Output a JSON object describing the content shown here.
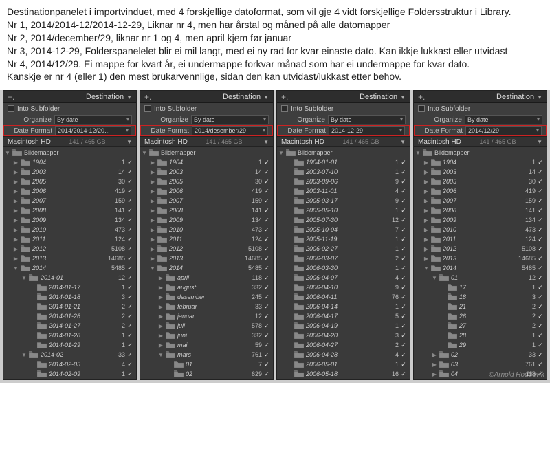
{
  "description_lines": [
    "Destinationpanelet i importvinduet, med 4 forskjellige datoformat, som vil gje 4 vidt forskjellige Foldersstruktur i Library.",
    "Nr 1, 2014/2014-12/2014-12-29, Liknar nr 4, men har årstal og måned på alle datomapper",
    "Nr 2, 2014/december/29, liknar nr 1 og 4, men april kjem før januar",
    "Nr 3, 2014-12-29, Folderspanelelet blir ei mil langt, med ei ny rad for kvar einaste dato. Kan ikkje lukkast eller utvidast",
    "Nr 4, 2014/12/29. Ei mappe for kvart år, ei undermappe forkvar månad som har ei undermappe for kvar dato.",
    "Kanskje er nr 4 (eller 1) den mest brukarvennlige, sidan den kan utvidast/lukkast etter behov."
  ],
  "common": {
    "header_plus": "+.",
    "header_title": "Destination",
    "into_subfolder": "Into Subfolder",
    "organize_label": "Organize",
    "organize_value": "By date",
    "dateformat_label": "Date Format",
    "hd_name": "Macintosh HD",
    "hd_size": "141 / 465 GB",
    "root_folder": "Bildemapper"
  },
  "watermark": "©Arnold Hoddevik",
  "panels": [
    {
      "date_format": "2014/2014-12/20...",
      "tree": [
        {
          "d": 1,
          "e": "▶",
          "n": "1904",
          "c": "1"
        },
        {
          "d": 1,
          "e": "▶",
          "n": "2003",
          "c": "14"
        },
        {
          "d": 1,
          "e": "▶",
          "n": "2005",
          "c": "30"
        },
        {
          "d": 1,
          "e": "▶",
          "n": "2006",
          "c": "419"
        },
        {
          "d": 1,
          "e": "▶",
          "n": "2007",
          "c": "159"
        },
        {
          "d": 1,
          "e": "▶",
          "n": "2008",
          "c": "141"
        },
        {
          "d": 1,
          "e": "▶",
          "n": "2009",
          "c": "134"
        },
        {
          "d": 1,
          "e": "▶",
          "n": "2010",
          "c": "473"
        },
        {
          "d": 1,
          "e": "▶",
          "n": "2011",
          "c": "124"
        },
        {
          "d": 1,
          "e": "▶",
          "n": "2012",
          "c": "5108"
        },
        {
          "d": 1,
          "e": "▶",
          "n": "2013",
          "c": "14685"
        },
        {
          "d": 1,
          "e": "▼",
          "n": "2014",
          "c": "5485"
        },
        {
          "d": 2,
          "e": "▼",
          "n": "2014-01",
          "c": "12"
        },
        {
          "d": 3,
          "e": "",
          "n": "2014-01-17",
          "c": "1"
        },
        {
          "d": 3,
          "e": "",
          "n": "2014-01-18",
          "c": "3"
        },
        {
          "d": 3,
          "e": "",
          "n": "2014-01-21",
          "c": "2"
        },
        {
          "d": 3,
          "e": "",
          "n": "2014-01-26",
          "c": "2"
        },
        {
          "d": 3,
          "e": "",
          "n": "2014-01-27",
          "c": "2"
        },
        {
          "d": 3,
          "e": "",
          "n": "2014-01-28",
          "c": "1"
        },
        {
          "d": 3,
          "e": "",
          "n": "2014-01-29",
          "c": "1"
        },
        {
          "d": 2,
          "e": "▼",
          "n": "2014-02",
          "c": "33"
        },
        {
          "d": 3,
          "e": "",
          "n": "2014-02-05",
          "c": "4"
        },
        {
          "d": 3,
          "e": "",
          "n": "2014-02-09",
          "c": "1"
        }
      ]
    },
    {
      "date_format": "2014/desember/29",
      "tree": [
        {
          "d": 1,
          "e": "▶",
          "n": "1904",
          "c": "1"
        },
        {
          "d": 1,
          "e": "▶",
          "n": "2003",
          "c": "14"
        },
        {
          "d": 1,
          "e": "▶",
          "n": "2005",
          "c": "30"
        },
        {
          "d": 1,
          "e": "▶",
          "n": "2006",
          "c": "419"
        },
        {
          "d": 1,
          "e": "▶",
          "n": "2007",
          "c": "159"
        },
        {
          "d": 1,
          "e": "▶",
          "n": "2008",
          "c": "141"
        },
        {
          "d": 1,
          "e": "▶",
          "n": "2009",
          "c": "134"
        },
        {
          "d": 1,
          "e": "▶",
          "n": "2010",
          "c": "473"
        },
        {
          "d": 1,
          "e": "▶",
          "n": "2011",
          "c": "124"
        },
        {
          "d": 1,
          "e": "▶",
          "n": "2012",
          "c": "5108"
        },
        {
          "d": 1,
          "e": "▶",
          "n": "2013",
          "c": "14685"
        },
        {
          "d": 1,
          "e": "▼",
          "n": "2014",
          "c": "5485"
        },
        {
          "d": 2,
          "e": "▶",
          "n": "april",
          "c": "118"
        },
        {
          "d": 2,
          "e": "▶",
          "n": "august",
          "c": "332"
        },
        {
          "d": 2,
          "e": "▶",
          "n": "desember",
          "c": "245"
        },
        {
          "d": 2,
          "e": "▶",
          "n": "februar",
          "c": "33"
        },
        {
          "d": 2,
          "e": "▶",
          "n": "januar",
          "c": "12"
        },
        {
          "d": 2,
          "e": "▶",
          "n": "juli",
          "c": "578"
        },
        {
          "d": 2,
          "e": "▶",
          "n": "juni",
          "c": "332"
        },
        {
          "d": 2,
          "e": "▶",
          "n": "mai",
          "c": "59"
        },
        {
          "d": 2,
          "e": "▼",
          "n": "mars",
          "c": "761"
        },
        {
          "d": 3,
          "e": "",
          "n": "01",
          "c": "7"
        },
        {
          "d": 3,
          "e": "",
          "n": "02",
          "c": "629"
        }
      ]
    },
    {
      "date_format": "2014-12-29",
      "tree": [
        {
          "d": 1,
          "e": "",
          "n": "1904-01-01",
          "c": "1"
        },
        {
          "d": 1,
          "e": "",
          "n": "2003-07-10",
          "c": "1"
        },
        {
          "d": 1,
          "e": "",
          "n": "2003-09-06",
          "c": "9"
        },
        {
          "d": 1,
          "e": "",
          "n": "2003-11-01",
          "c": "4"
        },
        {
          "d": 1,
          "e": "",
          "n": "2005-03-17",
          "c": "9"
        },
        {
          "d": 1,
          "e": "",
          "n": "2005-05-10",
          "c": "1"
        },
        {
          "d": 1,
          "e": "",
          "n": "2005-07-30",
          "c": "12"
        },
        {
          "d": 1,
          "e": "",
          "n": "2005-10-04",
          "c": "7"
        },
        {
          "d": 1,
          "e": "",
          "n": "2005-11-19",
          "c": "1"
        },
        {
          "d": 1,
          "e": "",
          "n": "2006-02-27",
          "c": "1"
        },
        {
          "d": 1,
          "e": "",
          "n": "2006-03-07",
          "c": "2"
        },
        {
          "d": 1,
          "e": "",
          "n": "2006-03-30",
          "c": "1"
        },
        {
          "d": 1,
          "e": "",
          "n": "2006-04-07",
          "c": "4"
        },
        {
          "d": 1,
          "e": "",
          "n": "2006-04-10",
          "c": "9"
        },
        {
          "d": 1,
          "e": "",
          "n": "2006-04-11",
          "c": "76"
        },
        {
          "d": 1,
          "e": "",
          "n": "2006-04-14",
          "c": "1"
        },
        {
          "d": 1,
          "e": "",
          "n": "2006-04-17",
          "c": "5"
        },
        {
          "d": 1,
          "e": "",
          "n": "2006-04-19",
          "c": "1"
        },
        {
          "d": 1,
          "e": "",
          "n": "2006-04-20",
          "c": "3"
        },
        {
          "d": 1,
          "e": "",
          "n": "2006-04-27",
          "c": "2"
        },
        {
          "d": 1,
          "e": "",
          "n": "2006-04-28",
          "c": "4"
        },
        {
          "d": 1,
          "e": "",
          "n": "2006-05-01",
          "c": "1"
        },
        {
          "d": 1,
          "e": "",
          "n": "2006-05-18",
          "c": "16"
        }
      ]
    },
    {
      "date_format": "2014/12/29",
      "tree": [
        {
          "d": 1,
          "e": "▶",
          "n": "1904",
          "c": "1"
        },
        {
          "d": 1,
          "e": "▶",
          "n": "2003",
          "c": "14"
        },
        {
          "d": 1,
          "e": "▶",
          "n": "2005",
          "c": "30"
        },
        {
          "d": 1,
          "e": "▶",
          "n": "2006",
          "c": "419"
        },
        {
          "d": 1,
          "e": "▶",
          "n": "2007",
          "c": "159"
        },
        {
          "d": 1,
          "e": "▶",
          "n": "2008",
          "c": "141"
        },
        {
          "d": 1,
          "e": "▶",
          "n": "2009",
          "c": "134"
        },
        {
          "d": 1,
          "e": "▶",
          "n": "2010",
          "c": "473"
        },
        {
          "d": 1,
          "e": "▶",
          "n": "2011",
          "c": "124"
        },
        {
          "d": 1,
          "e": "▶",
          "n": "2012",
          "c": "5108"
        },
        {
          "d": 1,
          "e": "▶",
          "n": "2013",
          "c": "14685"
        },
        {
          "d": 1,
          "e": "▼",
          "n": "2014",
          "c": "5485"
        },
        {
          "d": 2,
          "e": "▼",
          "n": "01",
          "c": "12"
        },
        {
          "d": 3,
          "e": "",
          "n": "17",
          "c": "1"
        },
        {
          "d": 3,
          "e": "",
          "n": "18",
          "c": "3"
        },
        {
          "d": 3,
          "e": "",
          "n": "21",
          "c": "2"
        },
        {
          "d": 3,
          "e": "",
          "n": "26",
          "c": "2"
        },
        {
          "d": 3,
          "e": "",
          "n": "27",
          "c": "2"
        },
        {
          "d": 3,
          "e": "",
          "n": "28",
          "c": "1"
        },
        {
          "d": 3,
          "e": "",
          "n": "29",
          "c": "1"
        },
        {
          "d": 2,
          "e": "▶",
          "n": "02",
          "c": "33"
        },
        {
          "d": 2,
          "e": "▶",
          "n": "03",
          "c": "761"
        },
        {
          "d": 2,
          "e": "▶",
          "n": "04",
          "c": "118"
        }
      ]
    }
  ]
}
